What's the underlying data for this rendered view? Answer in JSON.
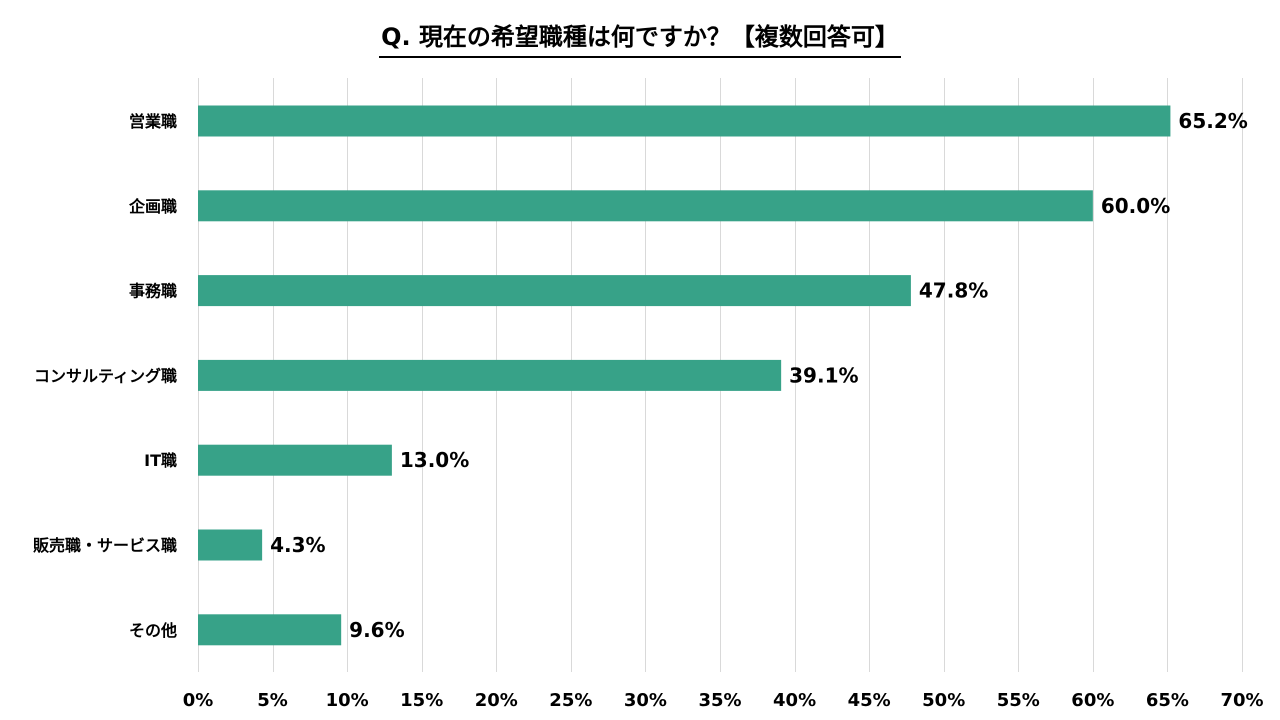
{
  "chart_data": {
    "type": "bar",
    "orientation": "horizontal",
    "title": "Q. 現在の希望職種は何ですか？【複数回答可】",
    "categories": [
      "営業職",
      "企画職",
      "事務職",
      "コンサルティング職",
      "IT職",
      "販売職・サービス職",
      "その他"
    ],
    "values": [
      65.2,
      60.0,
      47.8,
      39.1,
      13.0,
      4.3,
      9.6
    ],
    "value_labels": [
      "65.2%",
      "60.0%",
      "47.8%",
      "39.1%",
      "13.0%",
      "4.3%",
      "9.6%"
    ],
    "xlim": [
      0,
      70
    ],
    "x_ticks": [
      0,
      5,
      10,
      15,
      20,
      25,
      30,
      35,
      40,
      45,
      50,
      55,
      60,
      65,
      70
    ],
    "x_tick_labels": [
      "0%",
      "5%",
      "10%",
      "15%",
      "20%",
      "25%",
      "30%",
      "35%",
      "40%",
      "45%",
      "50%",
      "55%",
      "60%",
      "65%",
      "70%"
    ],
    "xlabel": "",
    "ylabel": "",
    "grid": "vertical",
    "legend": "none",
    "colors": {
      "bar": "#37a288",
      "grid": "#d9d9d9",
      "text": "#000000"
    }
  }
}
